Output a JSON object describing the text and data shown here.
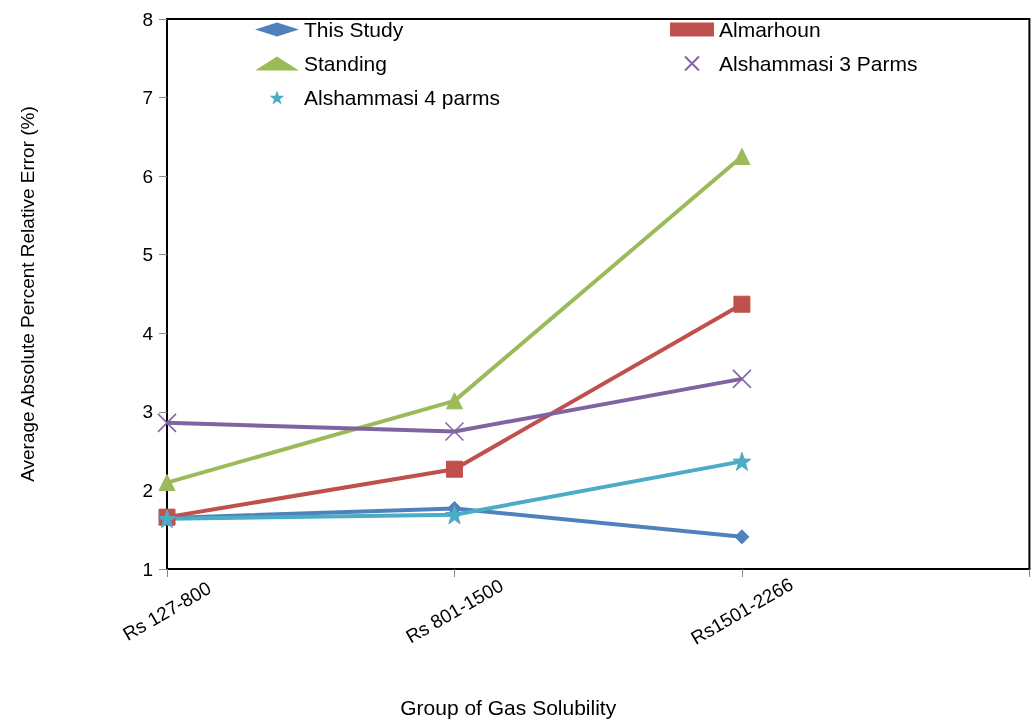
{
  "chart_data": {
    "type": "line",
    "xlabel": "Group of Gas Solubility",
    "ylabel": "Average Absolute Percent Relative Error (%)",
    "categories": [
      "Rs 127-800",
      "Rs 801-1500",
      "Rs1501-2266"
    ],
    "series": [
      {
        "name": "This Study",
        "color": "#4f81bd",
        "marker": "diamond",
        "values": [
          1.65,
          1.77,
          1.41
        ]
      },
      {
        "name": "Almarhoun",
        "color": "#c0504d",
        "marker": "square",
        "values": [
          1.66,
          2.27,
          4.37
        ]
      },
      {
        "name": "Standing",
        "color": "#9bbb59",
        "marker": "triangle",
        "values": [
          2.1,
          3.14,
          6.25
        ]
      },
      {
        "name": "Alshammasi 3 Parms",
        "color": "#8064a2",
        "marker": "cross",
        "values": [
          2.86,
          2.75,
          3.42
        ]
      },
      {
        "name": "Alshammasi 4 parms",
        "color": "#4bacc6",
        "marker": "star",
        "values": [
          1.64,
          1.69,
          2.37
        ]
      }
    ],
    "ylim": [
      1,
      8
    ],
    "yticks": [
      1,
      2,
      3,
      4,
      5,
      6,
      7,
      8
    ],
    "grid": false,
    "legend": "top"
  }
}
